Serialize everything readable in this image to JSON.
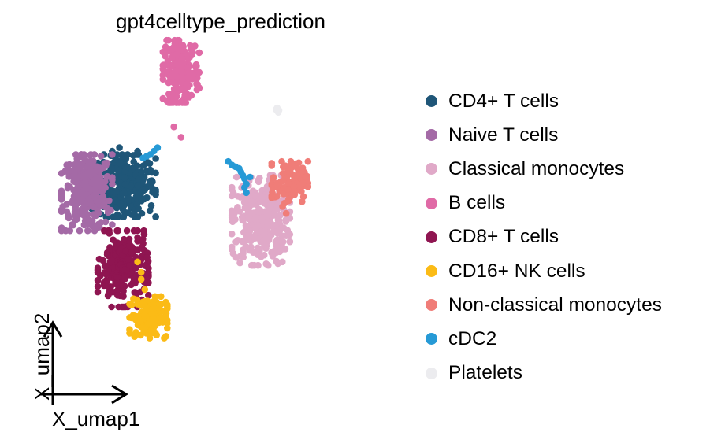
{
  "chart_data": {
    "type": "scatter",
    "title": "gpt4celltype_prediction",
    "xlabel": "X_umap1",
    "ylabel": "X_umap2",
    "axis_ticks": "none",
    "grid": false,
    "legend_position": "right",
    "xlim": [
      0,
      100
    ],
    "ylim": [
      0,
      100
    ],
    "series": [
      {
        "name": "CD4+ T cells",
        "color": "#1f5678",
        "clusters": [
          {
            "cx": 22,
            "cy": 60,
            "sx": 4.5,
            "sy": 4.5,
            "n": 320
          }
        ],
        "points": [
          [
            26,
            70
          ],
          [
            21,
            71
          ],
          [
            19,
            70
          ]
        ]
      },
      {
        "name": "Naive T cells",
        "color": "#a46aa6",
        "clusters": [
          {
            "cx": 12,
            "cy": 58,
            "sx": 3.5,
            "sy": 5.5,
            "n": 300
          }
        ]
      },
      {
        "name": "Classical monocytes",
        "color": "#e0a9c8",
        "clusters": [
          {
            "cx": 60,
            "cy": 50,
            "sx": 4.0,
            "sy": 6.5,
            "n": 330
          }
        ]
      },
      {
        "name": "B cells",
        "color": "#e06aa6",
        "clusters": [
          {
            "cx": 38,
            "cy": 93,
            "sx": 2.5,
            "sy": 4.5,
            "n": 200
          }
        ],
        "points": [
          [
            36,
            77
          ],
          [
            38,
            74
          ]
        ]
      },
      {
        "name": "CD8+ T cells",
        "color": "#8f1551",
        "clusters": [
          {
            "cx": 22,
            "cy": 36,
            "sx": 3.5,
            "sy": 5.5,
            "n": 240
          }
        ]
      },
      {
        "name": "CD16+ NK cells",
        "color": "#fbbb16",
        "clusters": [
          {
            "cx": 29,
            "cy": 22,
            "sx": 2.6,
            "sy": 3.0,
            "n": 140
          }
        ],
        "points": [
          [
            27,
            35
          ],
          [
            26,
            38
          ],
          [
            27,
            33
          ],
          [
            28,
            30
          ]
        ]
      },
      {
        "name": "Non-classical monocytes",
        "color": "#f07d78",
        "clusters": [
          {
            "cx": 68,
            "cy": 61,
            "sx": 2.5,
            "sy": 3.0,
            "n": 110
          }
        ],
        "points": [
          [
            66,
            54
          ],
          [
            67,
            52
          ]
        ]
      },
      {
        "name": "cDC2",
        "color": "#269ad6",
        "points": [
          [
            51,
            67
          ],
          [
            52,
            66
          ],
          [
            53,
            65.5
          ],
          [
            54,
            65
          ],
          [
            54.5,
            64
          ],
          [
            55,
            63
          ],
          [
            55.5,
            62
          ],
          [
            56,
            60.5
          ],
          [
            55.5,
            59.5
          ],
          [
            56,
            58
          ],
          [
            57,
            62.5
          ],
          [
            29.5,
            69
          ],
          [
            30.5,
            70
          ],
          [
            31.5,
            71
          ],
          [
            28.5,
            68.5
          ],
          [
            27.5,
            68
          ]
        ]
      },
      {
        "name": "Platelets",
        "color": "#ececef",
        "points": [
          [
            64.5,
            82.5
          ],
          [
            65,
            81.8
          ],
          [
            64.8,
            81.2
          ],
          [
            64.2,
            82
          ]
        ]
      }
    ]
  }
}
